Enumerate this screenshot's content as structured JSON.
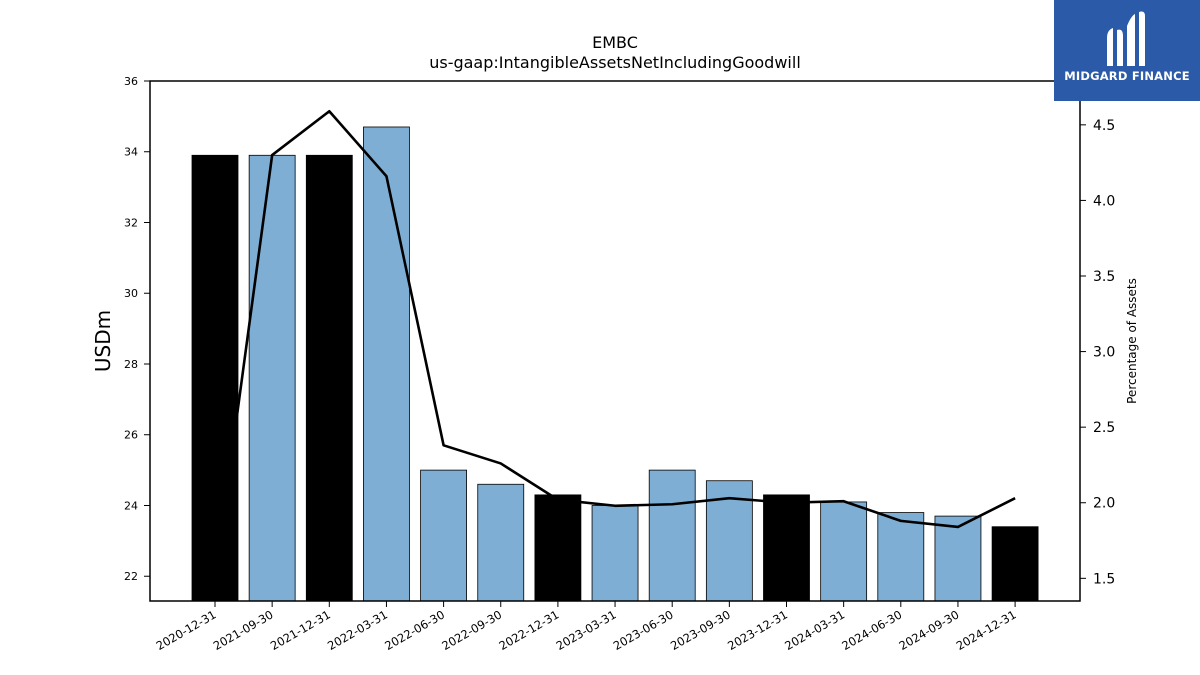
{
  "chart_data": {
    "type": "bar",
    "title": "EMBC",
    "subtitle": "us-gaap:IntangibleAssetsNetIncludingGoodwill",
    "ylabel": "USDm",
    "y2label": "Percentage of Assets",
    "ylim": [
      21.3,
      36.0
    ],
    "y2lim": [
      1.35,
      4.79
    ],
    "yticks": [
      22,
      24,
      26,
      28,
      30,
      32,
      34,
      36
    ],
    "y2ticks": [
      1.5,
      2.0,
      2.5,
      3.0,
      3.5,
      4.0,
      4.5
    ],
    "categories": [
      "2020-12-31",
      "2021-09-30",
      "2021-12-31",
      "2022-03-31",
      "2022-06-30",
      "2022-09-30",
      "2022-12-31",
      "2023-03-31",
      "2023-06-30",
      "2023-09-30",
      "2023-12-31",
      "2024-03-31",
      "2024-06-30",
      "2024-09-30",
      "2024-12-31"
    ],
    "series": [
      {
        "type": "bar",
        "values": [
          33.9,
          33.9,
          33.9,
          34.7,
          25.0,
          24.6,
          24.3,
          24.0,
          25.0,
          24.7,
          24.3,
          24.1,
          23.8,
          23.7,
          23.4
        ],
        "annual": [
          true,
          false,
          true,
          false,
          false,
          false,
          true,
          false,
          false,
          false,
          true,
          false,
          false,
          false,
          true
        ]
      },
      {
        "type": "line",
        "axis": "right",
        "values": [
          1.5,
          4.3,
          4.59,
          4.16,
          2.38,
          2.26,
          2.02,
          1.98,
          1.99,
          2.03,
          2.0,
          2.01,
          1.88,
          1.84,
          2.03
        ]
      }
    ],
    "colors": {
      "annual_bar": "#000000",
      "quarter_bar": "#7eaed3",
      "line": "#000000"
    }
  },
  "logo": {
    "text": "MIDGARD FINANCE",
    "background": "#2b5aa8"
  }
}
